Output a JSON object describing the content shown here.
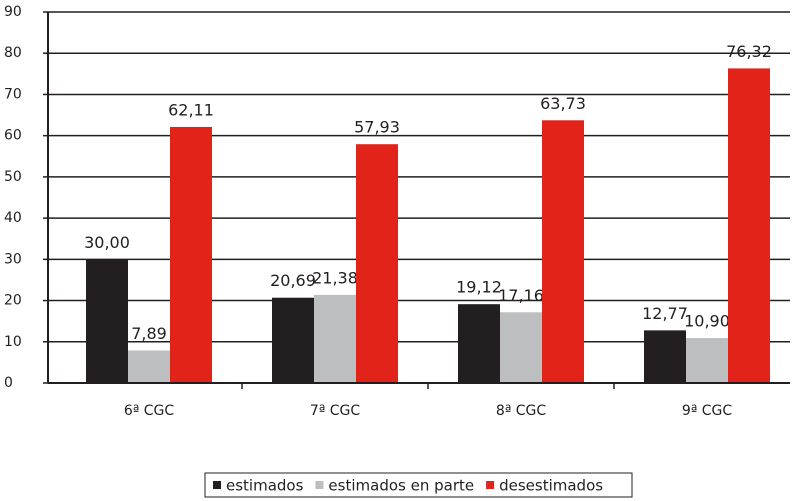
{
  "chart_data": {
    "type": "bar",
    "categories": [
      "6ª CGC",
      "7ª CGC",
      "8ª CGC",
      "9ª CGC"
    ],
    "series": [
      {
        "name": "estimados",
        "color": "#231f20",
        "values": [
          30,
          20.69,
          19.12,
          12.77
        ],
        "value_labels": [
          "30,00",
          "20,69",
          "19,12",
          "12,77"
        ]
      },
      {
        "name": "estimados en parte",
        "color": "#bcbec0",
        "values": [
          7.89,
          21.38,
          17.16,
          10.9
        ],
        "value_labels": [
          "7,89",
          "21,38",
          "17,16",
          "10,90"
        ]
      },
      {
        "name": "desestimados",
        "color": "#e2231a",
        "values": [
          62.11,
          57.93,
          63.73,
          76.32
        ],
        "value_labels": [
          "62,11",
          "57,93",
          "63,73",
          "76,32"
        ]
      }
    ],
    "ylim": [
      0,
      90
    ],
    "yticks": [
      0,
      10,
      20,
      30,
      40,
      50,
      60,
      70,
      80,
      90
    ],
    "grid": true,
    "legend": "bottom"
  }
}
